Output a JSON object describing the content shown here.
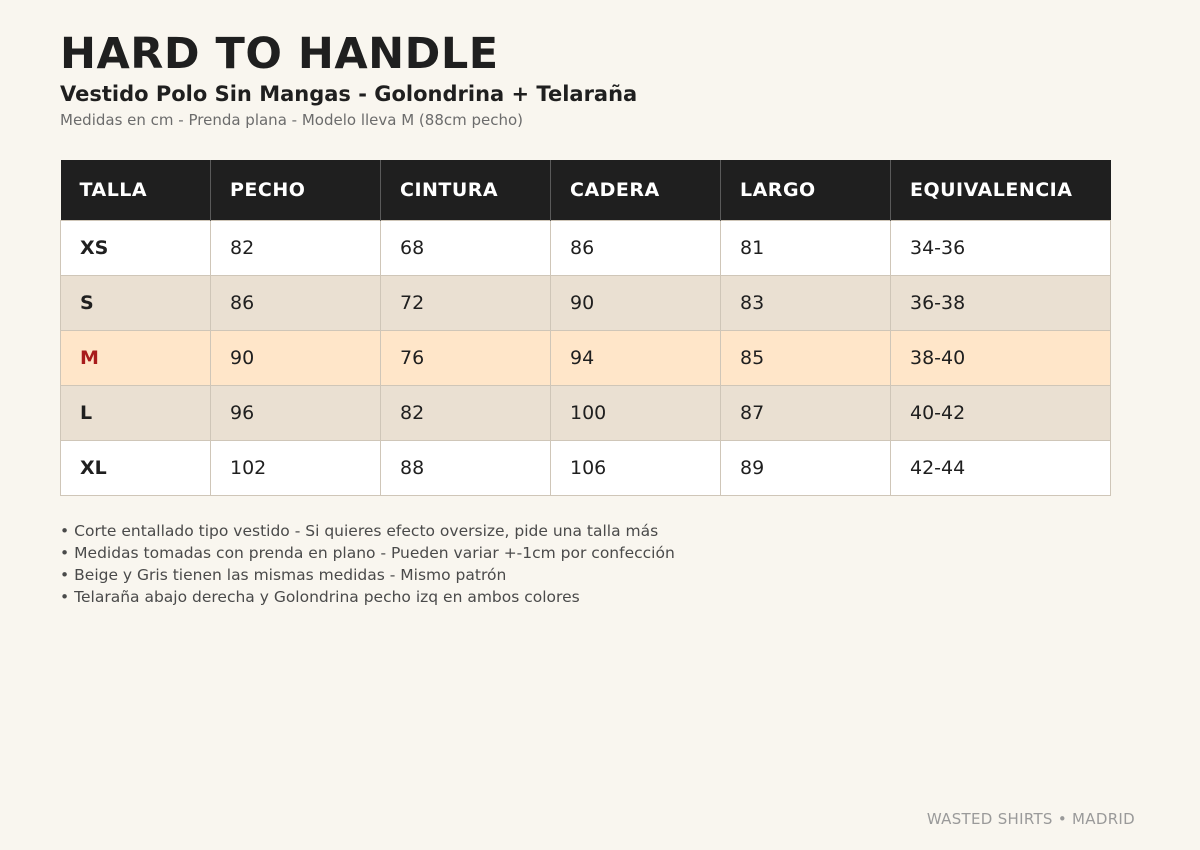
{
  "header": {
    "brand": "HARD TO HANDLE",
    "product": "Vestido Polo Sin Mangas - Golondrina + Telaraña",
    "measure_note": "Medidas en cm - Prenda plana - Modelo lleva M (88cm pecho)"
  },
  "table": {
    "columns": [
      "TALLA",
      "PECHO",
      "CINTURA",
      "CADERA",
      "LARGO",
      "EQUIVALENCIA"
    ],
    "rows": [
      {
        "talla": "XS",
        "pecho": "82",
        "cintura": "68",
        "cadera": "86",
        "largo": "81",
        "equivalencia": "34-36"
      },
      {
        "talla": "S",
        "pecho": "86",
        "cintura": "72",
        "cadera": "90",
        "largo": "83",
        "equivalencia": "36-38"
      },
      {
        "talla": "M",
        "pecho": "90",
        "cintura": "76",
        "cadera": "94",
        "largo": "85",
        "equivalencia": "38-40"
      },
      {
        "talla": "L",
        "pecho": "96",
        "cintura": "82",
        "cadera": "100",
        "largo": "87",
        "equivalencia": "40-42"
      },
      {
        "talla": "XL",
        "pecho": "102",
        "cintura": "88",
        "cadera": "106",
        "largo": "89",
        "equivalencia": "42-44"
      }
    ],
    "highlighted_size": "M",
    "colors": {
      "header_bg": "#1f1f1f",
      "row_alt": "#eae0d2",
      "row_highlight": "#ffe6c9",
      "highlight_text": "#a81c1c"
    }
  },
  "notes": {
    "bullet": "•",
    "items": [
      "Corte entallado tipo vestido - Si quieres efecto oversize, pide una talla más",
      "Medidas tomadas con prenda en plano - Pueden variar +-1cm por confección",
      "Beige y Gris tienen las mismas medidas - Mismo patrón",
      "Telaraña abajo derecha y Golondrina pecho izq en ambos colores"
    ]
  },
  "footer": {
    "text": "WASTED SHIRTS • MADRID"
  }
}
